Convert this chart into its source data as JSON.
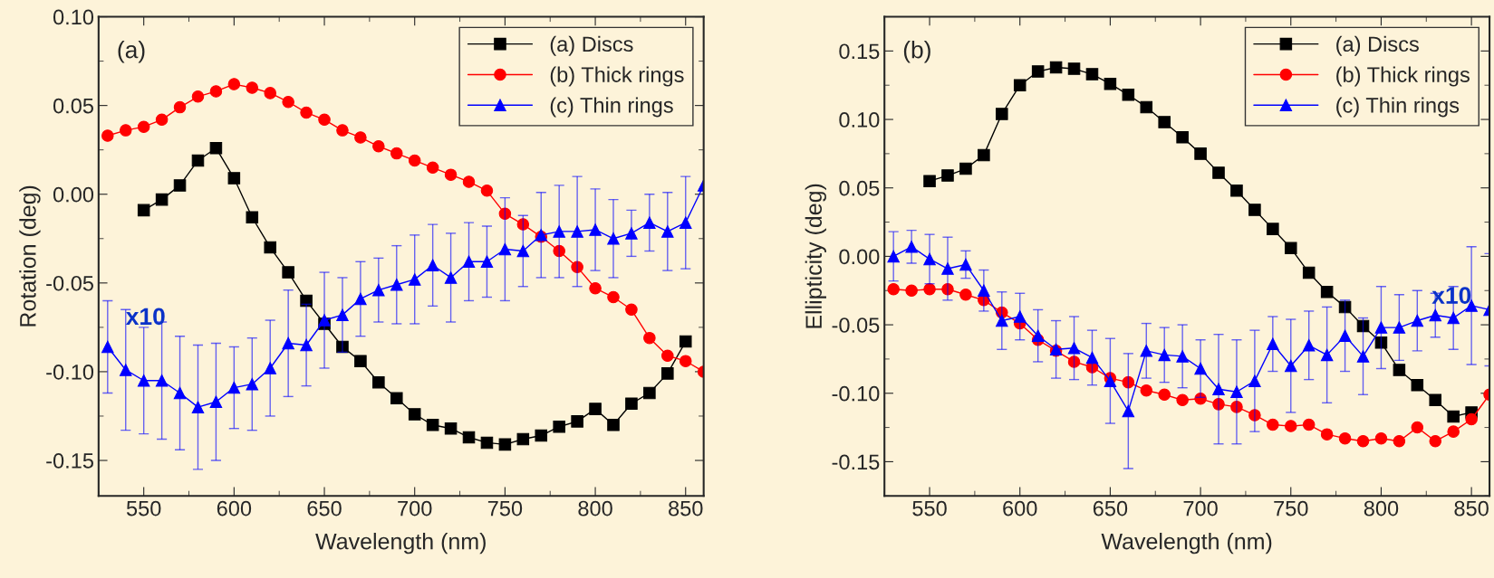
{
  "chart_data": [
    {
      "type": "line",
      "xlabel": "Wavelength (nm)",
      "ylabel": "Rotation (deg)",
      "xlim": [
        525,
        860
      ],
      "ylim": [
        -0.17,
        0.1
      ],
      "xticks": [
        550,
        600,
        650,
        700,
        750,
        800,
        850
      ],
      "yticks": [
        {
          "value": -0.15,
          "label": "-0.15"
        },
        {
          "value": -0.1,
          "label": "-0.10"
        },
        {
          "value": -0.05,
          "label": "-0.05"
        },
        {
          "value": 0,
          "label": "0.00"
        },
        {
          "value": 0.05,
          "label": "0.05"
        },
        {
          "value": 0.1,
          "label": "0.10"
        }
      ],
      "legend": "top right",
      "grid": false,
      "annotations": [
        "(a)",
        {
          "text": "x10",
          "x": 540,
          "y": -0.07
        }
      ],
      "series": [
        {
          "name": "(a) Discs",
          "color": "#000000",
          "marker": "square",
          "x": [
            550,
            560,
            570,
            580,
            590,
            600,
            610,
            620,
            630,
            640,
            650,
            660,
            670,
            680,
            690,
            700,
            710,
            720,
            730,
            740,
            750,
            760,
            770,
            780,
            790,
            800,
            810,
            820,
            830,
            840,
            850
          ],
          "values": [
            -0.009,
            -0.003,
            0.005,
            0.019,
            0.026,
            0.009,
            -0.013,
            -0.03,
            -0.044,
            -0.06,
            -0.073,
            -0.086,
            -0.094,
            -0.106,
            -0.115,
            -0.124,
            -0.13,
            -0.132,
            -0.137,
            -0.14,
            -0.141,
            -0.138,
            -0.136,
            -0.131,
            -0.128,
            -0.121,
            -0.13,
            -0.118,
            -0.112,
            -0.101,
            -0.083
          ]
        },
        {
          "name": "(b) Thick rings",
          "color": "#ff0000",
          "marker": "circle",
          "x": [
            530,
            540,
            550,
            560,
            570,
            580,
            590,
            600,
            610,
            620,
            630,
            640,
            650,
            660,
            670,
            680,
            690,
            700,
            710,
            720,
            730,
            740,
            750,
            760,
            770,
            780,
            790,
            800,
            810,
            820,
            830,
            840,
            850,
            860
          ],
          "values": [
            0.033,
            0.036,
            0.038,
            0.042,
            0.049,
            0.055,
            0.058,
            0.062,
            0.06,
            0.057,
            0.052,
            0.046,
            0.042,
            0.036,
            0.032,
            0.027,
            0.023,
            0.019,
            0.015,
            0.011,
            0.007,
            0.002,
            -0.011,
            -0.017,
            -0.024,
            -0.032,
            -0.041,
            -0.053,
            -0.058,
            -0.065,
            -0.081,
            -0.091,
            -0.094,
            -0.1
          ]
        },
        {
          "name": "(c) Thin rings",
          "color": "#0000ff",
          "marker": "triangle",
          "x": [
            530,
            540,
            550,
            560,
            570,
            580,
            590,
            600,
            610,
            620,
            630,
            640,
            650,
            660,
            670,
            680,
            690,
            700,
            710,
            720,
            730,
            740,
            750,
            760,
            770,
            780,
            790,
            800,
            810,
            820,
            830,
            840,
            850,
            860
          ],
          "values": [
            -0.086,
            -0.099,
            -0.105,
            -0.105,
            -0.112,
            -0.12,
            -0.117,
            -0.109,
            -0.107,
            -0.098,
            -0.084,
            -0.085,
            -0.071,
            -0.068,
            -0.059,
            -0.054,
            -0.051,
            -0.048,
            -0.04,
            -0.047,
            -0.038,
            -0.038,
            -0.031,
            -0.032,
            -0.023,
            -0.021,
            -0.021,
            -0.02,
            -0.025,
            -0.022,
            -0.016,
            -0.021,
            -0.016,
            0.005
          ],
          "errors": [
            0.026,
            0.034,
            0.03,
            0.033,
            0.032,
            0.035,
            0.033,
            0.023,
            0.026,
            0.027,
            0.03,
            0.023,
            0.027,
            0.021,
            0.021,
            0.018,
            0.022,
            0.025,
            0.023,
            0.025,
            0.022,
            0.02,
            0.029,
            0.02,
            0.024,
            0.026,
            0.031,
            0.023,
            0.022,
            0.013,
            0.016,
            0.022,
            0.026,
            null
          ]
        }
      ]
    },
    {
      "type": "line",
      "xlabel": "Wavelength (nm)",
      "ylabel": "Ellipticity (deg)",
      "xlim": [
        525,
        860
      ],
      "ylim": [
        -0.175,
        0.175
      ],
      "xticks": [
        550,
        600,
        650,
        700,
        750,
        800,
        850
      ],
      "yticks": [
        {
          "value": -0.15,
          "label": "-0.15"
        },
        {
          "value": -0.1,
          "label": "-0.10"
        },
        {
          "value": -0.05,
          "label": "-0.05"
        },
        {
          "value": 0,
          "label": "0.00"
        },
        {
          "value": 0.05,
          "label": "0.05"
        },
        {
          "value": 0.1,
          "label": "0.10"
        },
        {
          "value": 0.15,
          "label": "0.15"
        }
      ],
      "legend": "top right",
      "grid": false,
      "annotations": [
        "(b)",
        {
          "text": "x10",
          "x": 828,
          "y": -0.03
        }
      ],
      "series": [
        {
          "name": "(a) Discs",
          "color": "#000000",
          "marker": "square",
          "x": [
            550,
            560,
            570,
            580,
            590,
            600,
            610,
            620,
            630,
            640,
            650,
            660,
            670,
            680,
            690,
            700,
            710,
            720,
            730,
            740,
            750,
            760,
            770,
            780,
            790,
            800,
            810,
            820,
            830,
            840,
            850
          ],
          "values": [
            0.055,
            0.059,
            0.064,
            0.074,
            0.104,
            0.125,
            0.135,
            0.138,
            0.137,
            0.133,
            0.126,
            0.118,
            0.109,
            0.098,
            0.087,
            0.075,
            0.061,
            0.048,
            0.034,
            0.02,
            0.006,
            -0.012,
            -0.026,
            -0.037,
            -0.051,
            -0.063,
            -0.083,
            -0.094,
            -0.105,
            -0.117,
            -0.114
          ]
        },
        {
          "name": "(b) Thick rings",
          "color": "#ff0000",
          "marker": "circle",
          "x": [
            530,
            540,
            550,
            560,
            570,
            580,
            590,
            600,
            610,
            620,
            630,
            640,
            650,
            660,
            670,
            680,
            690,
            700,
            710,
            720,
            730,
            740,
            750,
            760,
            770,
            780,
            790,
            800,
            810,
            820,
            830,
            840,
            850,
            860
          ],
          "values": [
            -0.024,
            -0.025,
            -0.024,
            -0.024,
            -0.028,
            -0.032,
            -0.041,
            -0.049,
            -0.061,
            -0.069,
            -0.077,
            -0.081,
            -0.089,
            -0.092,
            -0.098,
            -0.101,
            -0.105,
            -0.104,
            -0.108,
            -0.11,
            -0.116,
            -0.123,
            -0.124,
            -0.123,
            -0.13,
            -0.133,
            -0.135,
            -0.133,
            -0.135,
            -0.125,
            -0.135,
            -0.128,
            -0.119,
            -0.101
          ]
        },
        {
          "name": "(c) Thin rings",
          "color": "#0000ff",
          "marker": "triangle",
          "x": [
            530,
            540,
            550,
            560,
            570,
            580,
            590,
            600,
            610,
            620,
            630,
            640,
            650,
            660,
            670,
            680,
            690,
            700,
            710,
            720,
            730,
            740,
            750,
            760,
            770,
            780,
            790,
            800,
            810,
            820,
            830,
            840,
            850,
            860
          ],
          "values": [
            0.0,
            0.007,
            -0.002,
            -0.009,
            -0.006,
            -0.025,
            -0.047,
            -0.044,
            -0.058,
            -0.068,
            -0.067,
            -0.074,
            -0.091,
            -0.113,
            -0.069,
            -0.072,
            -0.073,
            -0.082,
            -0.097,
            -0.099,
            -0.091,
            -0.064,
            -0.08,
            -0.065,
            -0.072,
            -0.058,
            -0.073,
            -0.052,
            -0.052,
            -0.047,
            -0.043,
            -0.045,
            -0.036,
            -0.039
          ],
          "errors": [
            0.018,
            0.012,
            0.018,
            0.023,
            0.01,
            0.015,
            0.021,
            0.017,
            0.019,
            0.021,
            0.023,
            0.02,
            0.031,
            0.042,
            0.02,
            0.02,
            0.023,
            0.021,
            0.04,
            0.038,
            0.037,
            0.02,
            0.034,
            0.025,
            0.035,
            0.026,
            0.028,
            0.03,
            0.024,
            0.022,
            0.016,
            0.023,
            0.043,
            0.041
          ]
        }
      ]
    }
  ]
}
